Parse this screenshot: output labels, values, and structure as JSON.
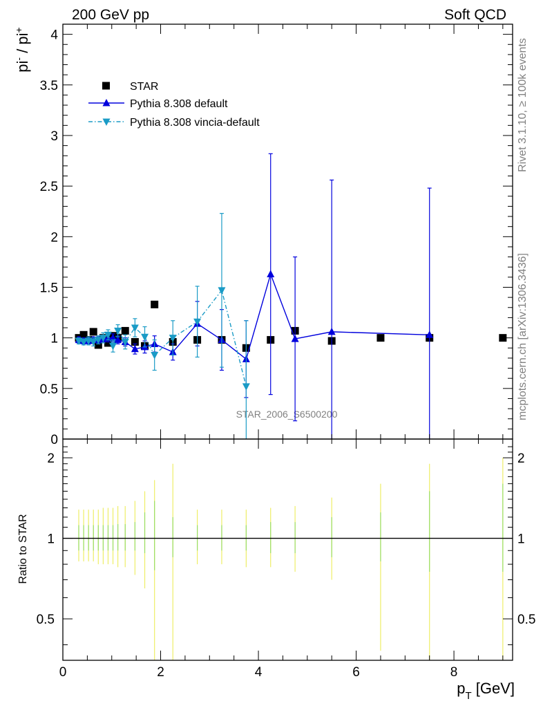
{
  "header": {
    "left": "200 GeV pp",
    "right": "Soft QCD"
  },
  "side_labels": {
    "rivet": "Rivet 3.1.10, ≥ 100k events",
    "mcplots": "mcplots.cern.ch [arXiv:1306.3436]"
  },
  "watermark": "STAR_2006_S6500200",
  "colors": {
    "star": "#000000",
    "pythia_default": "#0000dd",
    "pythia_vincia": "#1a9bc6",
    "ratio_band_green": "#99dd66",
    "ratio_band_yellow": "#eeee66"
  },
  "chart_data": [
    {
      "type": "scatter",
      "panel": "main",
      "ylabel_main": "pi",
      "ylabel_sup1": "-",
      "ylabel_sep": " / pi",
      "ylabel_sup2": "+",
      "xlim": [
        0,
        9.2
      ],
      "ylim": [
        0,
        4.1
      ],
      "yticks": [
        {
          "v": 0,
          "label": "0"
        },
        {
          "v": 0.5,
          "label": "0.5"
        },
        {
          "v": 1,
          "label": "1"
        },
        {
          "v": 1.5,
          "label": "1.5"
        },
        {
          "v": 2,
          "label": "2"
        },
        {
          "v": 2.5,
          "label": "2.5"
        },
        {
          "v": 3,
          "label": "3"
        },
        {
          "v": 3.5,
          "label": "3.5"
        },
        {
          "v": 4,
          "label": "4"
        }
      ],
      "legend": [
        {
          "key": "star",
          "label": "STAR"
        },
        {
          "key": "pythia_default",
          "label": "Pythia 8.308 default"
        },
        {
          "key": "pythia_vincia",
          "label": "Pythia 8.308 vincia-default"
        }
      ],
      "series": [
        {
          "key": "star",
          "name": "STAR",
          "marker": "square",
          "x": [
            0.325,
            0.425,
            0.525,
            0.625,
            0.725,
            0.825,
            0.925,
            1.025,
            1.125,
            1.275,
            1.475,
            1.675,
            1.875,
            2.25,
            2.75,
            3.25,
            3.75,
            4.25,
            4.75,
            5.5,
            6.5,
            7.5,
            9.0
          ],
          "y": [
            1.0,
            1.03,
            0.98,
            1.06,
            0.93,
            1.0,
            0.95,
            1.02,
            1.0,
            1.07,
            0.96,
            0.92,
            1.33,
            0.96,
            0.98,
            0.98,
            0.9,
            0.98,
            1.07,
            0.97,
            1.0,
            1.0,
            1.0
          ]
        },
        {
          "key": "pythia_default",
          "name": "Pythia 8.308 default",
          "marker": "triangle-up",
          "x": [
            0.325,
            0.425,
            0.525,
            0.625,
            0.725,
            0.825,
            0.925,
            1.025,
            1.125,
            1.275,
            1.475,
            1.675,
            1.875,
            2.25,
            2.75,
            3.25,
            3.75,
            4.25,
            4.75,
            5.5,
            7.5
          ],
          "y": [
            0.98,
            0.97,
            0.97,
            0.98,
            0.98,
            0.99,
            1.0,
            1.0,
            0.98,
            0.96,
            0.89,
            0.91,
            0.94,
            0.86,
            1.14,
            0.98,
            0.79,
            1.63,
            0.99,
            1.06,
            1.03
          ],
          "yerr": [
            0.03,
            0.03,
            0.03,
            0.03,
            0.03,
            0.03,
            0.04,
            0.04,
            0.04,
            0.04,
            0.05,
            0.06,
            0.08,
            0.08,
            0.22,
            0.3,
            0.38,
            1.19,
            0.81,
            1.5,
            1.45
          ]
        },
        {
          "key": "pythia_vincia",
          "name": "Pythia 8.308 vincia-default",
          "marker": "triangle-down",
          "x": [
            0.325,
            0.425,
            0.525,
            0.625,
            0.725,
            0.825,
            0.925,
            1.025,
            1.125,
            1.275,
            1.475,
            1.675,
            1.875,
            2.25,
            2.75,
            3.25,
            3.75
          ],
          "y": [
            0.97,
            0.96,
            0.97,
            0.96,
            0.98,
            1.0,
            1.03,
            0.92,
            1.07,
            0.96,
            1.1,
            1.01,
            0.83,
            1.0,
            1.16,
            1.47,
            0.52
          ],
          "yerr": [
            0.03,
            0.03,
            0.04,
            0.04,
            0.04,
            0.05,
            0.05,
            0.06,
            0.06,
            0.07,
            0.09,
            0.1,
            0.15,
            0.17,
            0.35,
            0.76,
            0.65
          ]
        }
      ]
    },
    {
      "type": "scatter",
      "panel": "ratio",
      "ylabel": "Ratio to STAR",
      "xlabel_p": "p",
      "xlabel_sub": "T",
      "xlabel_unit": " [GeV]",
      "xlim": [
        0,
        9.2
      ],
      "ylim": [
        0.35,
        2.35
      ],
      "log_y": true,
      "xticks": [
        {
          "v": 0,
          "label": "0"
        },
        {
          "v": 2,
          "label": "2"
        },
        {
          "v": 4,
          "label": "4"
        },
        {
          "v": 6,
          "label": "6"
        },
        {
          "v": 8,
          "label": "8"
        }
      ],
      "yticks": [
        {
          "v": 0.5,
          "label": "0.5"
        },
        {
          "v": 1,
          "label": "1"
        },
        {
          "v": 2,
          "label": "2"
        }
      ],
      "reference": 1.0,
      "bands": {
        "x": [
          0.325,
          0.425,
          0.525,
          0.625,
          0.725,
          0.825,
          0.925,
          1.025,
          1.125,
          1.275,
          1.475,
          1.675,
          1.875,
          2.25,
          2.75,
          3.25,
          3.75,
          4.25,
          4.75,
          5.5,
          6.5,
          7.5,
          9.0
        ],
        "green_low": [
          0.9,
          0.9,
          0.9,
          0.9,
          0.9,
          0.9,
          0.9,
          0.9,
          0.9,
          0.9,
          0.9,
          0.88,
          0.76,
          0.85,
          0.9,
          0.9,
          0.9,
          0.88,
          0.88,
          0.85,
          0.82,
          0.75,
          0.75
        ],
        "green_high": [
          1.12,
          1.12,
          1.12,
          1.12,
          1.12,
          1.12,
          1.12,
          1.12,
          1.13,
          1.13,
          1.15,
          1.25,
          1.38,
          1.2,
          1.12,
          1.12,
          1.12,
          1.15,
          1.15,
          1.2,
          1.25,
          1.5,
          1.6
        ],
        "yellow_low": [
          0.82,
          0.82,
          0.82,
          0.82,
          0.8,
          0.8,
          0.8,
          0.8,
          0.78,
          0.78,
          0.73,
          0.65,
          0.35,
          0.35,
          0.8,
          0.8,
          0.78,
          0.78,
          0.75,
          0.7,
          0.38,
          0.35,
          0.35
        ],
        "yellow_high": [
          1.28,
          1.28,
          1.28,
          1.28,
          1.28,
          1.3,
          1.3,
          1.3,
          1.32,
          1.32,
          1.38,
          1.5,
          1.65,
          1.9,
          1.28,
          1.28,
          1.28,
          1.3,
          1.32,
          1.42,
          1.6,
          1.9,
          2.0
        ]
      }
    }
  ]
}
